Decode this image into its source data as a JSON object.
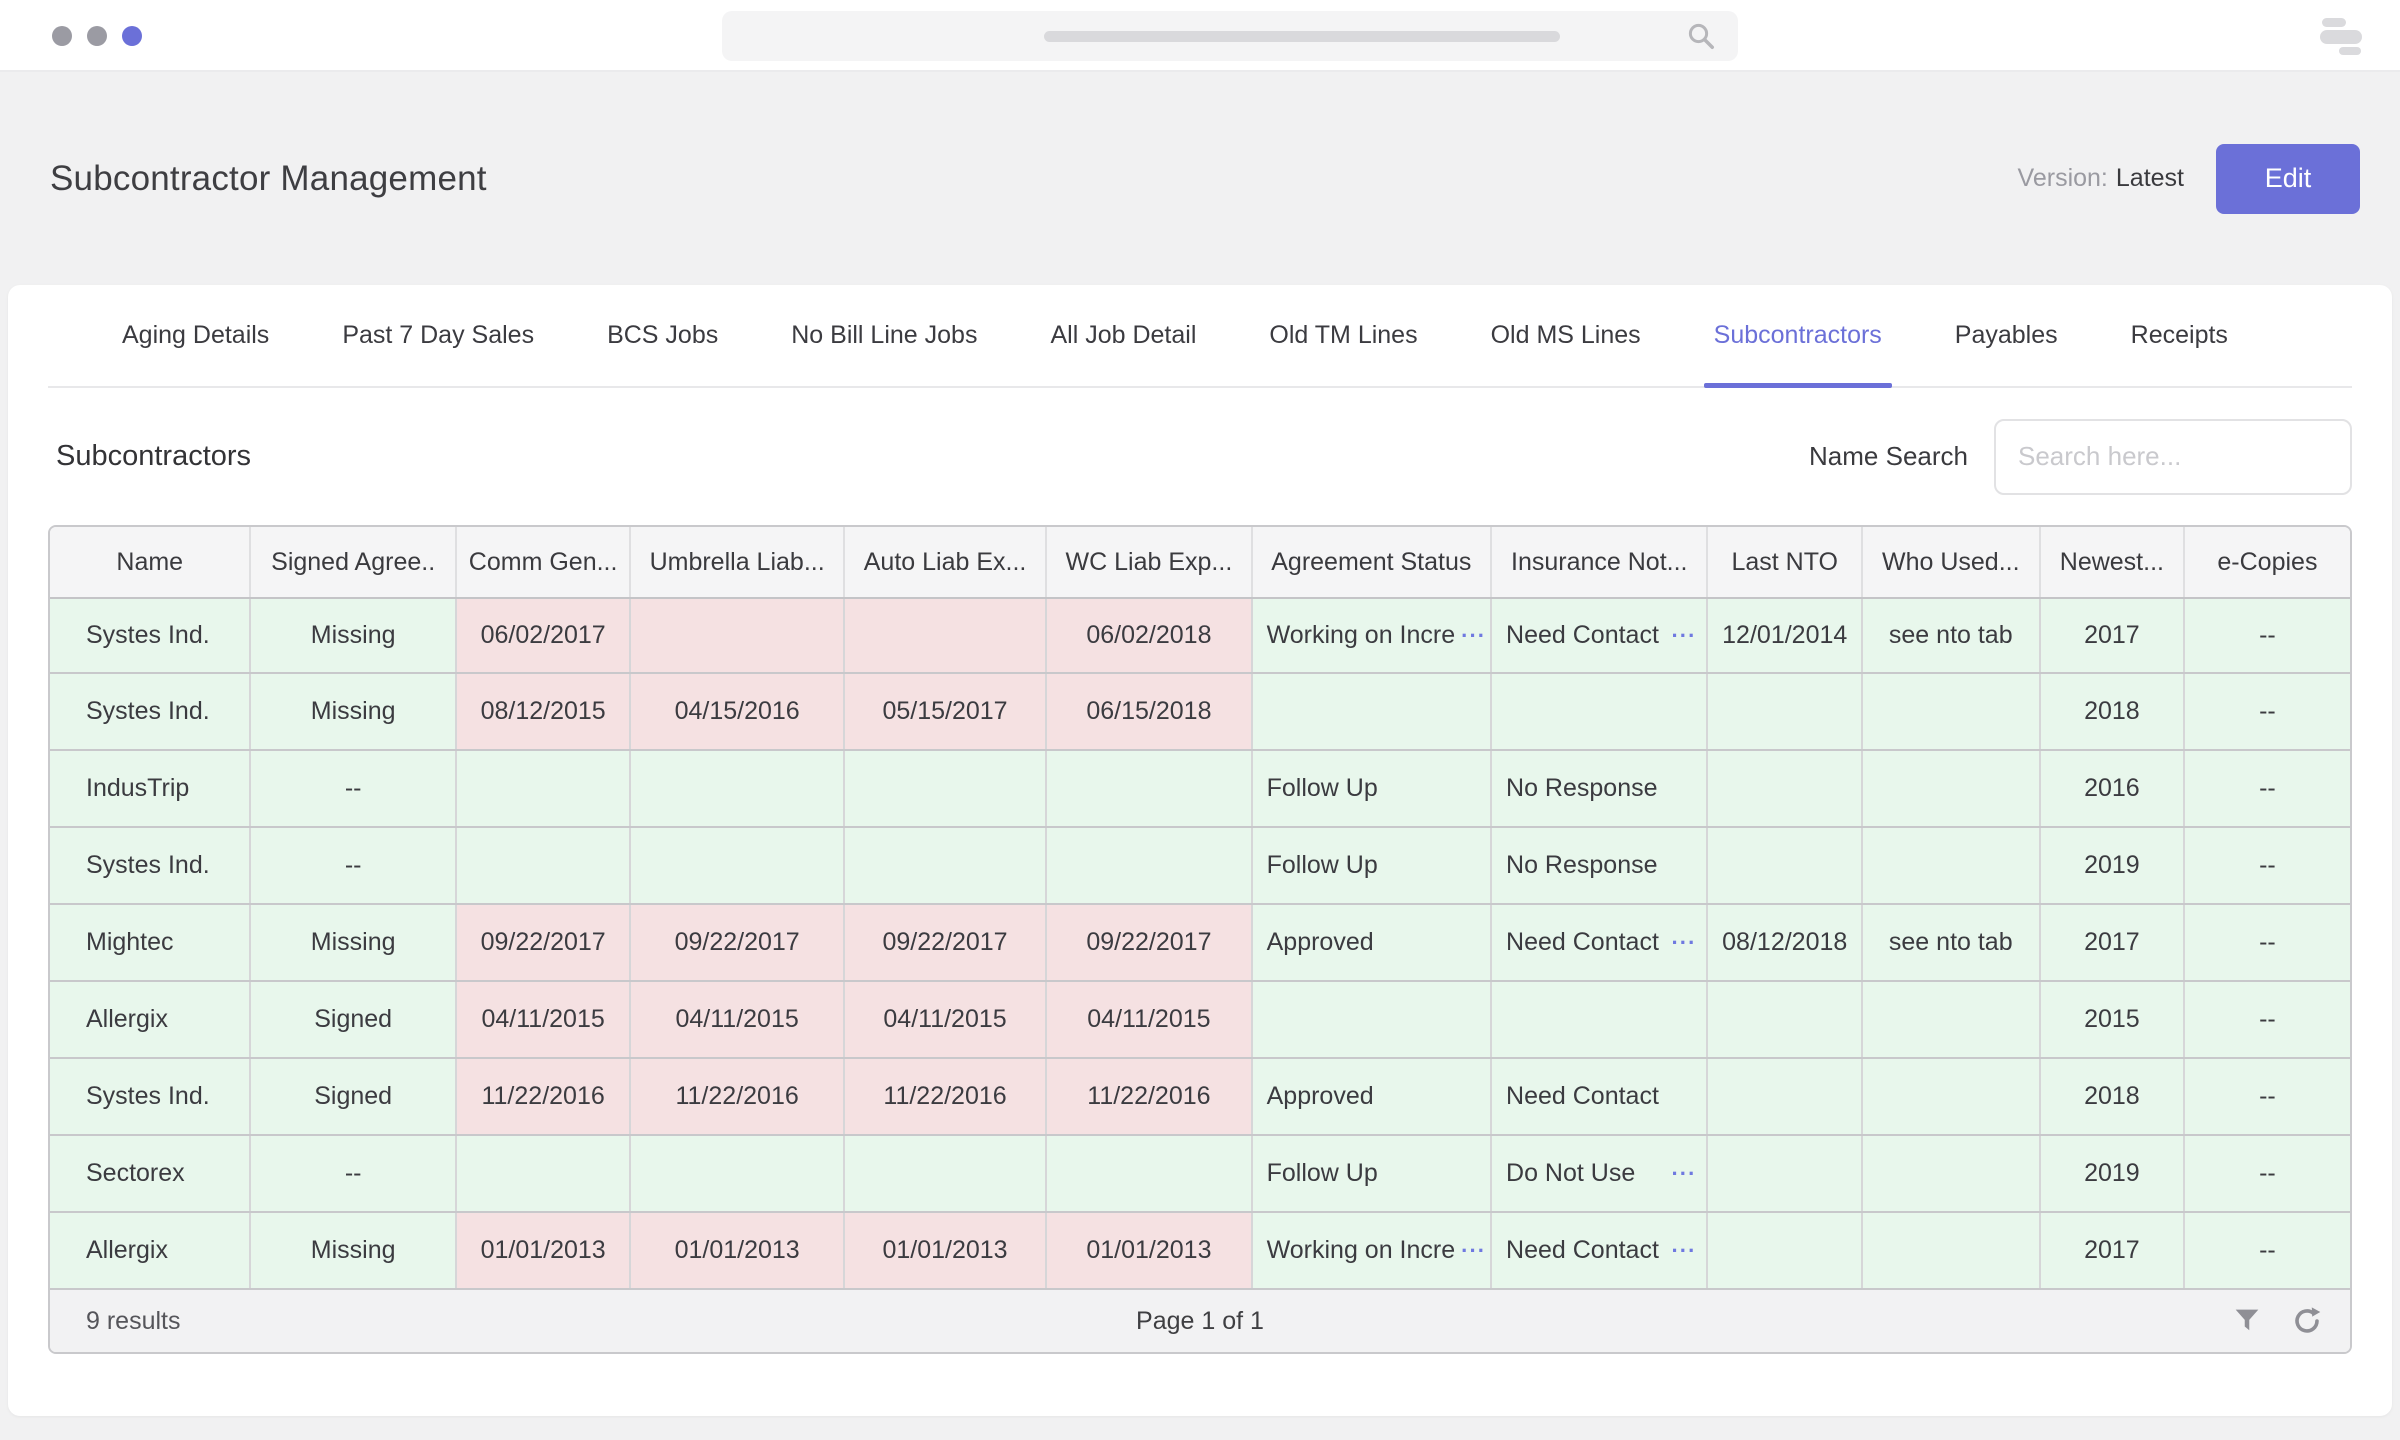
{
  "colors": {
    "accent": "#6b70d8",
    "green_cell": "#e8f7ec",
    "pink_cell": "#f5e1e2"
  },
  "icons": {
    "search": "magnifier",
    "window_menu": "stacked-bars",
    "filter": "funnel",
    "refresh": "circular-arrow",
    "truncation": "···"
  },
  "header": {
    "title": "Subcontractor Management",
    "version_label": "Version:",
    "version_value": "Latest",
    "edit_button": "Edit"
  },
  "tabs": [
    {
      "label": "Aging Details",
      "active": false
    },
    {
      "label": "Past 7 Day Sales",
      "active": false
    },
    {
      "label": "BCS Jobs",
      "active": false
    },
    {
      "label": "No Bill Line Jobs",
      "active": false
    },
    {
      "label": "All Job Detail",
      "active": false
    },
    {
      "label": "Old TM Lines",
      "active": false
    },
    {
      "label": "Old MS Lines",
      "active": false
    },
    {
      "label": "Subcontractors",
      "active": true
    },
    {
      "label": "Payables",
      "active": false
    },
    {
      "label": "Receipts",
      "active": false
    }
  ],
  "section": {
    "title": "Subcontractors",
    "search_label": "Name Search",
    "search_placeholder": "Search here..."
  },
  "table": {
    "columns": [
      "Name",
      "Signed Agree..",
      "Comm Gen...",
      "Umbrella Liab...",
      "Auto Liab Ex...",
      "WC Liab Exp...",
      "Agreement Status",
      "Insurance Not...",
      "Last NTO",
      "Who Used...",
      "Newest...",
      "e-Copies"
    ],
    "rows": [
      [
        {
          "t": "Systes Ind.",
          "c": "g"
        },
        {
          "t": "Missing",
          "c": "g"
        },
        {
          "t": "06/02/2017",
          "c": "r"
        },
        {
          "t": "",
          "c": "r"
        },
        {
          "t": "",
          "c": "r"
        },
        {
          "t": "06/02/2018",
          "c": "r"
        },
        {
          "t": "Working on Incre",
          "c": "g",
          "m": true
        },
        {
          "t": "Need Contact",
          "c": "g",
          "m": true
        },
        {
          "t": "12/01/2014",
          "c": "g"
        },
        {
          "t": "see nto tab",
          "c": "g"
        },
        {
          "t": "2017",
          "c": "g"
        },
        {
          "t": "--",
          "c": "g"
        }
      ],
      [
        {
          "t": "Systes Ind.",
          "c": "g"
        },
        {
          "t": "Missing",
          "c": "g"
        },
        {
          "t": "08/12/2015",
          "c": "r"
        },
        {
          "t": "04/15/2016",
          "c": "r"
        },
        {
          "t": "05/15/2017",
          "c": "r"
        },
        {
          "t": "06/15/2018",
          "c": "r"
        },
        {
          "t": "",
          "c": "g"
        },
        {
          "t": "",
          "c": "g"
        },
        {
          "t": "",
          "c": "g"
        },
        {
          "t": "",
          "c": "g"
        },
        {
          "t": "2018",
          "c": "g"
        },
        {
          "t": "--",
          "c": "g"
        }
      ],
      [
        {
          "t": "IndusTrip",
          "c": "g"
        },
        {
          "t": "--",
          "c": "g"
        },
        {
          "t": "",
          "c": "g"
        },
        {
          "t": "",
          "c": "g"
        },
        {
          "t": "",
          "c": "g"
        },
        {
          "t": "",
          "c": "g"
        },
        {
          "t": "Follow Up",
          "c": "g"
        },
        {
          "t": "No Response",
          "c": "g"
        },
        {
          "t": "",
          "c": "g"
        },
        {
          "t": "",
          "c": "g"
        },
        {
          "t": "2016",
          "c": "g"
        },
        {
          "t": "--",
          "c": "g"
        }
      ],
      [
        {
          "t": "Systes Ind.",
          "c": "g"
        },
        {
          "t": "--",
          "c": "g"
        },
        {
          "t": "",
          "c": "g"
        },
        {
          "t": "",
          "c": "g"
        },
        {
          "t": "",
          "c": "g"
        },
        {
          "t": "",
          "c": "g"
        },
        {
          "t": "Follow Up",
          "c": "g"
        },
        {
          "t": "No Response",
          "c": "g"
        },
        {
          "t": "",
          "c": "g"
        },
        {
          "t": "",
          "c": "g"
        },
        {
          "t": "2019",
          "c": "g"
        },
        {
          "t": "--",
          "c": "g"
        }
      ],
      [
        {
          "t": "Mightec",
          "c": "g"
        },
        {
          "t": "Missing",
          "c": "g"
        },
        {
          "t": "09/22/2017",
          "c": "r"
        },
        {
          "t": "09/22/2017",
          "c": "r"
        },
        {
          "t": "09/22/2017",
          "c": "r"
        },
        {
          "t": "09/22/2017",
          "c": "r"
        },
        {
          "t": "Approved",
          "c": "g"
        },
        {
          "t": "Need Contact",
          "c": "g",
          "m": true
        },
        {
          "t": "08/12/2018",
          "c": "g"
        },
        {
          "t": "see nto tab",
          "c": "g"
        },
        {
          "t": "2017",
          "c": "g"
        },
        {
          "t": "--",
          "c": "g"
        }
      ],
      [
        {
          "t": "Allergix",
          "c": "g"
        },
        {
          "t": "Signed",
          "c": "g"
        },
        {
          "t": "04/11/2015",
          "c": "r"
        },
        {
          "t": "04/11/2015",
          "c": "r"
        },
        {
          "t": "04/11/2015",
          "c": "r"
        },
        {
          "t": "04/11/2015",
          "c": "r"
        },
        {
          "t": "",
          "c": "g"
        },
        {
          "t": "",
          "c": "g"
        },
        {
          "t": "",
          "c": "g"
        },
        {
          "t": "",
          "c": "g"
        },
        {
          "t": "2015",
          "c": "g"
        },
        {
          "t": "--",
          "c": "g"
        }
      ],
      [
        {
          "t": "Systes Ind.",
          "c": "g"
        },
        {
          "t": "Signed",
          "c": "g"
        },
        {
          "t": "11/22/2016",
          "c": "r"
        },
        {
          "t": "11/22/2016",
          "c": "r"
        },
        {
          "t": "11/22/2016",
          "c": "r"
        },
        {
          "t": "11/22/2016",
          "c": "r"
        },
        {
          "t": "Approved",
          "c": "g"
        },
        {
          "t": "Need Contact",
          "c": "g"
        },
        {
          "t": "",
          "c": "g"
        },
        {
          "t": "",
          "c": "g"
        },
        {
          "t": "2018",
          "c": "g"
        },
        {
          "t": "--",
          "c": "g"
        }
      ],
      [
        {
          "t": "Sectorex",
          "c": "g"
        },
        {
          "t": "--",
          "c": "g"
        },
        {
          "t": "",
          "c": "g"
        },
        {
          "t": "",
          "c": "g"
        },
        {
          "t": "",
          "c": "g"
        },
        {
          "t": "",
          "c": "g"
        },
        {
          "t": "Follow Up",
          "c": "g"
        },
        {
          "t": "Do Not Use",
          "c": "g",
          "m": true
        },
        {
          "t": "",
          "c": "g"
        },
        {
          "t": "",
          "c": "g"
        },
        {
          "t": "2019",
          "c": "g"
        },
        {
          "t": "--",
          "c": "g"
        }
      ],
      [
        {
          "t": "Allergix",
          "c": "g"
        },
        {
          "t": "Missing",
          "c": "g"
        },
        {
          "t": "01/01/2013",
          "c": "r"
        },
        {
          "t": "01/01/2013",
          "c": "r"
        },
        {
          "t": "01/01/2013",
          "c": "r"
        },
        {
          "t": "01/01/2013",
          "c": "r"
        },
        {
          "t": "Working on Incre",
          "c": "g",
          "m": true
        },
        {
          "t": "Need Contact",
          "c": "g",
          "m": true
        },
        {
          "t": "",
          "c": "g"
        },
        {
          "t": "",
          "c": "g"
        },
        {
          "t": "2017",
          "c": "g"
        },
        {
          "t": "--",
          "c": "g"
        }
      ]
    ]
  },
  "footer": {
    "results": "9 results",
    "page": "Page 1 of 1"
  }
}
